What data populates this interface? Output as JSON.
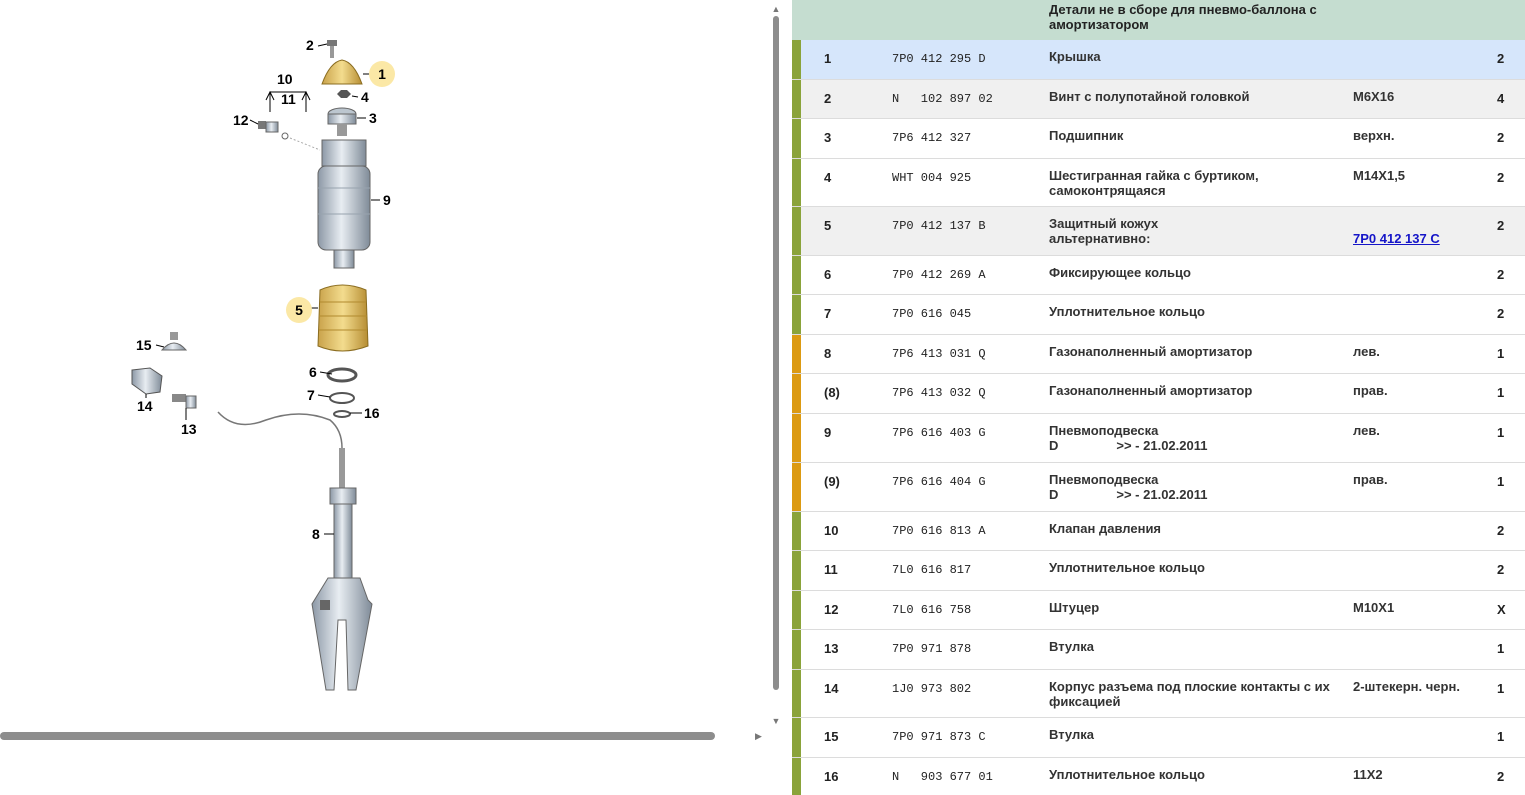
{
  "diagram": {
    "callouts": [
      {
        "id": "c1",
        "label": "1",
        "highlight": true
      },
      {
        "id": "c2",
        "label": "2",
        "highlight": false
      },
      {
        "id": "c3",
        "label": "3",
        "highlight": false
      },
      {
        "id": "c4",
        "label": "4",
        "highlight": false
      },
      {
        "id": "c5",
        "label": "5",
        "highlight": true
      },
      {
        "id": "c6",
        "label": "6",
        "highlight": false
      },
      {
        "id": "c7",
        "label": "7",
        "highlight": false
      },
      {
        "id": "c8",
        "label": "8",
        "highlight": false
      },
      {
        "id": "c9",
        "label": "9",
        "highlight": false
      },
      {
        "id": "c10",
        "label": "10",
        "highlight": false
      },
      {
        "id": "c11",
        "label": "11",
        "highlight": false
      },
      {
        "id": "c12",
        "label": "12",
        "highlight": false
      },
      {
        "id": "c13",
        "label": "13",
        "highlight": false
      },
      {
        "id": "c14",
        "label": "14",
        "highlight": false
      },
      {
        "id": "c15",
        "label": "15",
        "highlight": false
      },
      {
        "id": "c16",
        "label": "16",
        "highlight": false
      }
    ]
  },
  "colors": {
    "header_bg": "#c5ddd0",
    "selected_row": "#d6e6fb",
    "alt_row": "#f0f0f0",
    "strip_green": "#8aa33a",
    "strip_orange": "#dc9a12",
    "link": "#1515c8",
    "highlight_callout": "#fbe8a6"
  },
  "table": {
    "header": "Детали не в сборе для пневмо-баллона с амортизатором",
    "rows": [
      {
        "pos": "1",
        "partno": "7P0 412 295 D",
        "name": "Крышка",
        "note": "",
        "qty": "2",
        "strip": "green",
        "bg": "selected"
      },
      {
        "pos": "2",
        "partno": "N   102 897 02",
        "name": "Винт с полупотайной головкой",
        "note": "M6X16",
        "qty": "4",
        "strip": "green",
        "bg": "alt"
      },
      {
        "pos": "3",
        "partno": "7P6 412 327",
        "name": "Подшипник",
        "note": "верхн.",
        "qty": "2",
        "strip": "green",
        "bg": "white"
      },
      {
        "pos": "4",
        "partno": "WHT 004 925",
        "name": "Шестигранная гайка с буртиком, самоконтрящаяся",
        "note": "M14X1,5",
        "qty": "2",
        "strip": "green",
        "bg": "white"
      },
      {
        "pos": "5",
        "partno": "7P0 412 137 B",
        "name": "Защитный кожух",
        "name2": "альтернативно:",
        "note": "",
        "link": "7P0 412 137 C",
        "qty": "2",
        "strip": "green",
        "bg": "alt"
      },
      {
        "pos": "6",
        "partno": "7P0 412 269 A",
        "name": "Фиксирующее кольцо",
        "note": "",
        "qty": "2",
        "strip": "green",
        "bg": "white"
      },
      {
        "pos": "7",
        "partno": "7P0 616 045",
        "name": "Уплотнительное кольцо",
        "note": "",
        "qty": "2",
        "strip": "green",
        "bg": "white"
      },
      {
        "pos": "8",
        "partno": "7P6 413 031 Q",
        "name": "Газонаполненный амортизатор",
        "note": "лев.",
        "qty": "1",
        "strip": "orange",
        "bg": "white"
      },
      {
        "pos": "(8)",
        "partno": "7P6 413 032 Q",
        "name": "Газонаполненный амортизатор",
        "note": "прав.",
        "qty": "1",
        "strip": "orange",
        "bg": "white"
      },
      {
        "pos": "9",
        "partno": "7P6 616 403 G",
        "name": "Пневмоподвеска",
        "name2a": "D",
        "name2b": ">> - 21.02.2011",
        "note": "лев.",
        "qty": "1",
        "strip": "orange",
        "bg": "white"
      },
      {
        "pos": "(9)",
        "partno": "7P6 616 404 G",
        "name": "Пневмоподвеска",
        "name2a": "D",
        "name2b": ">> - 21.02.2011",
        "note": "прав.",
        "qty": "1",
        "strip": "orange",
        "bg": "white"
      },
      {
        "pos": "10",
        "partno": "7P0 616 813 A",
        "name": "Клапан давления",
        "note": "",
        "qty": "2",
        "strip": "green",
        "bg": "white"
      },
      {
        "pos": "11",
        "partno": "7L0 616 817",
        "name": "Уплотнительное кольцо",
        "note": "",
        "qty": "2",
        "strip": "green",
        "bg": "white"
      },
      {
        "pos": "12",
        "partno": "7L0 616 758",
        "name": "Штуцер",
        "note": "M10X1",
        "qty": "X",
        "strip": "green",
        "bg": "white"
      },
      {
        "pos": "13",
        "partno": "7P0 971 878",
        "name": "Втулка",
        "note": "",
        "qty": "1",
        "strip": "green",
        "bg": "white"
      },
      {
        "pos": "14",
        "partno": "1J0 973 802",
        "name": "Корпус разъема под плоские контакты с их фиксацией",
        "note": "2-штекерн. черн.",
        "qty": "1",
        "strip": "green",
        "bg": "white"
      },
      {
        "pos": "15",
        "partno": "7P0 971 873 C",
        "name": "Втулка",
        "note": "",
        "qty": "1",
        "strip": "green",
        "bg": "white"
      },
      {
        "pos": "16",
        "partno": "N   903 677 01",
        "name": "Уплотнительное кольцо",
        "note": "11X2",
        "qty": "2",
        "strip": "green",
        "bg": "white"
      }
    ]
  }
}
